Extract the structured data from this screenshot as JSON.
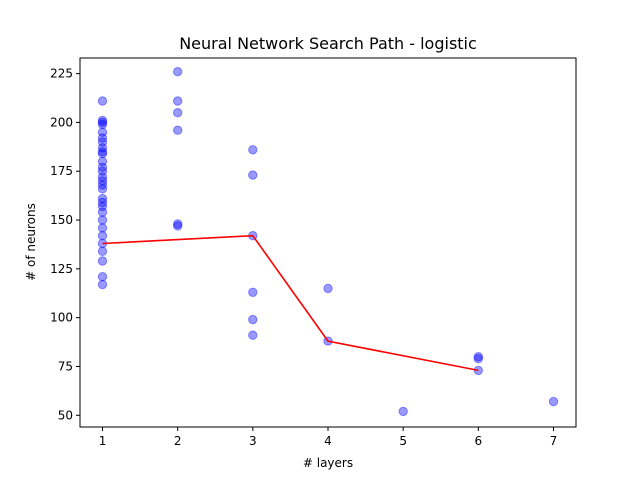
{
  "chart_data": {
    "type": "scatter",
    "title": "Neural Network Search Path - logistic",
    "xlabel": "# layers",
    "ylabel": "# of neurons",
    "xlim": [
      0.7,
      7.3
    ],
    "ylim": [
      44,
      233
    ],
    "xticks": [
      1,
      2,
      3,
      4,
      5,
      6,
      7
    ],
    "yticks": [
      50,
      75,
      100,
      125,
      150,
      175,
      200,
      225
    ],
    "grid": false,
    "legend": "none",
    "scatter": {
      "color": "#0000ff",
      "opacity": 0.4,
      "points": [
        [
          1,
          211
        ],
        [
          1,
          201
        ],
        [
          1,
          200
        ],
        [
          1,
          199
        ],
        [
          1,
          195
        ],
        [
          1,
          192
        ],
        [
          1,
          190
        ],
        [
          1,
          187
        ],
        [
          1,
          185
        ],
        [
          1,
          184
        ],
        [
          1,
          180
        ],
        [
          1,
          177
        ],
        [
          1,
          175
        ],
        [
          1,
          172
        ],
        [
          1,
          170
        ],
        [
          1,
          168
        ],
        [
          1,
          166
        ],
        [
          1,
          161
        ],
        [
          1,
          159
        ],
        [
          1,
          157
        ],
        [
          1,
          154
        ],
        [
          1,
          150
        ],
        [
          1,
          146
        ],
        [
          1,
          142
        ],
        [
          1,
          138
        ],
        [
          1,
          134
        ],
        [
          1,
          129
        ],
        [
          1,
          121
        ],
        [
          1,
          117
        ],
        [
          2,
          226
        ],
        [
          2,
          211
        ],
        [
          2,
          205
        ],
        [
          2,
          196
        ],
        [
          2,
          148
        ],
        [
          2,
          147
        ],
        [
          3,
          186
        ],
        [
          3,
          173
        ],
        [
          3,
          142
        ],
        [
          3,
          113
        ],
        [
          3,
          99
        ],
        [
          3,
          91
        ],
        [
          4,
          115
        ],
        [
          4,
          88
        ],
        [
          5,
          52
        ],
        [
          6,
          80
        ],
        [
          6,
          79
        ],
        [
          6,
          73
        ],
        [
          7,
          57
        ]
      ]
    },
    "line": {
      "color": "#ff0000",
      "points": [
        [
          1,
          138
        ],
        [
          3,
          142
        ],
        [
          4,
          88
        ],
        [
          6,
          73
        ]
      ]
    }
  }
}
